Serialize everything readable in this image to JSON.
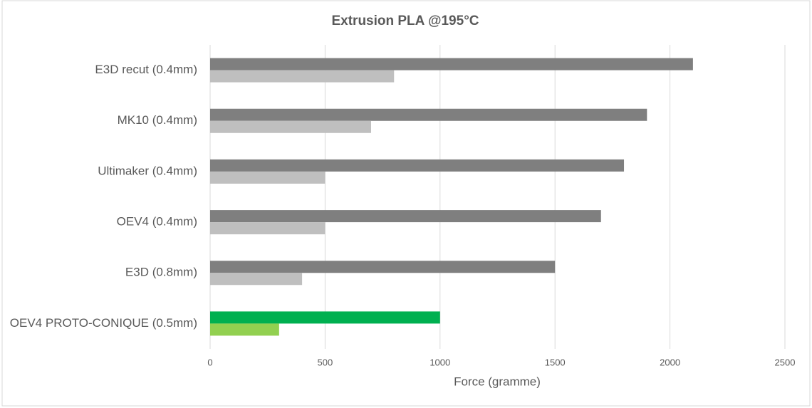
{
  "chart_data": {
    "type": "bar",
    "orientation": "horizontal",
    "title": "Extrusion PLA @195°C",
    "x_label": "Force (gramme)",
    "categories": [
      "E3D recut (0.4mm)",
      "MK10 (0.4mm)",
      "Ultimaker (0.4mm)",
      "OEV4 (0.4mm)",
      "E3D (0.8mm)",
      "OEV4 PROTO-CONIQUE (0.5mm)"
    ],
    "series": [
      {
        "colors": [
          "#7f7f7f",
          "#7f7f7f",
          "#7f7f7f",
          "#7f7f7f",
          "#7f7f7f",
          "#00b050"
        ],
        "values": [
          2100,
          1900,
          1800,
          1700,
          1500,
          1000
        ]
      },
      {
        "colors": [
          "#bfbfbf",
          "#bfbfbf",
          "#bfbfbf",
          "#bfbfbf",
          "#bfbfbf",
          "#92d050"
        ],
        "values": [
          800,
          700,
          500,
          500,
          400,
          300
        ]
      }
    ],
    "xlim": [
      0,
      2500
    ],
    "xticks": [
      0,
      500,
      1000,
      1500,
      2000,
      2500
    ],
    "grid": true
  }
}
